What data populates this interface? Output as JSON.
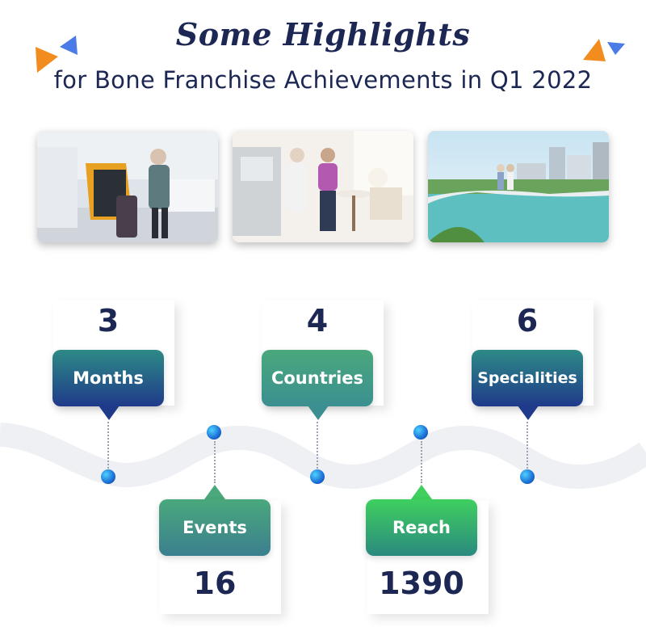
{
  "title": {
    "main": "Some Highlights",
    "sub": "for Bone Franchise Achievements in Q1 2022"
  },
  "photos": [
    {
      "name": "woman-with-luggage-at-airport"
    },
    {
      "name": "senior-couple-in-kitchen"
    },
    {
      "name": "couple-on-bridge-over-river"
    }
  ],
  "stats": [
    {
      "value": "3",
      "label": "Months"
    },
    {
      "value": "4",
      "label": "Countries"
    },
    {
      "value": "6",
      "label": "Specialities"
    },
    {
      "value": "16",
      "label": "Events"
    },
    {
      "value": "1390",
      "label": "Reach"
    }
  ],
  "colors": {
    "title": "#1c2754",
    "months": "#1f3a8a",
    "countries": "#3fa07a",
    "specialities": "#1f3a8a",
    "events": "#3d8b72",
    "reach": "#2fbe6a",
    "accent_orange": "#f28c1e",
    "accent_blue": "#4a7be6"
  }
}
